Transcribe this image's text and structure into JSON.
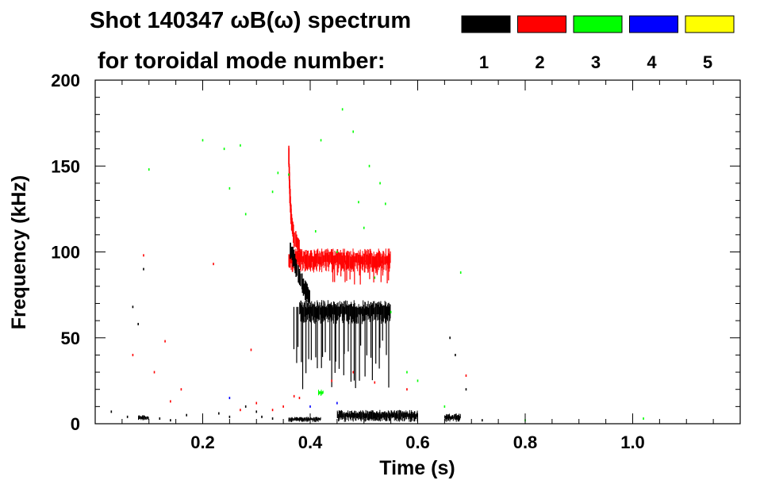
{
  "chart_data": {
    "type": "heatmap",
    "title": "Shot 140347 ωB(ω) spectrum",
    "legend_title": "for toroidal mode number:",
    "legend_placement": "top-right",
    "legend": [
      {
        "label": "1",
        "color": "#000000"
      },
      {
        "label": "2",
        "color": "#ff0000"
      },
      {
        "label": "3",
        "color": "#00ff00"
      },
      {
        "label": "4",
        "color": "#0000ff"
      },
      {
        "label": "5",
        "color": "#ffff00"
      }
    ],
    "xlabel": "Time (s)",
    "ylabel": "Frequency (kHz)",
    "xlim": [
      0.0,
      1.2
    ],
    "ylim": [
      0,
      200
    ],
    "xticks": [
      0.2,
      0.4,
      0.6,
      0.8,
      1.0
    ],
    "xtick_labels": [
      "0.2",
      "0.4",
      "0.6",
      "0.8",
      "1.0"
    ],
    "yticks": [
      0,
      50,
      100,
      150,
      200
    ],
    "ytick_labels": [
      "0",
      "50",
      "100",
      "150",
      "200"
    ],
    "grid": false,
    "features": [
      {
        "mode": "2",
        "color": "#ff0000",
        "kind": "band",
        "t_start": 0.36,
        "t_end": 0.55,
        "f_low": 88,
        "f_high": 102
      },
      {
        "mode": "2",
        "color": "#ff0000",
        "kind": "chirp",
        "points": [
          [
            0.36,
            160
          ],
          [
            0.362,
            135
          ],
          [
            0.365,
            118
          ],
          [
            0.37,
            108
          ],
          [
            0.38,
            103
          ]
        ]
      },
      {
        "mode": "2",
        "color": "#ff0000",
        "kind": "spikes",
        "t_start": 0.44,
        "t_end": 0.55,
        "f_top": 95,
        "f_bottom": 80
      },
      {
        "mode": "1",
        "color": "#000000",
        "kind": "chirp",
        "points": [
          [
            0.362,
            103
          ],
          [
            0.37,
            95
          ],
          [
            0.38,
            85
          ],
          [
            0.39,
            78
          ],
          [
            0.4,
            74
          ]
        ]
      },
      {
        "mode": "1",
        "color": "#000000",
        "kind": "band",
        "t_start": 0.38,
        "t_end": 0.55,
        "f_low": 58,
        "f_high": 72
      },
      {
        "mode": "1",
        "color": "#000000",
        "kind": "spikes",
        "t_start": 0.365,
        "t_end": 0.55,
        "f_top": 68,
        "f_bottom": 20
      },
      {
        "mode": "1",
        "color": "#000000",
        "kind": "band",
        "t_start": 0.36,
        "t_end": 0.42,
        "f_low": 1,
        "f_high": 4
      },
      {
        "mode": "1",
        "color": "#000000",
        "kind": "band",
        "t_start": 0.45,
        "t_end": 0.6,
        "f_low": 1,
        "f_high": 8
      },
      {
        "mode": "1",
        "color": "#000000",
        "kind": "band",
        "t_start": 0.65,
        "t_end": 0.68,
        "f_low": 1,
        "f_high": 6
      },
      {
        "mode": "1",
        "color": "#000000",
        "kind": "band",
        "t_start": 0.08,
        "t_end": 0.1,
        "f_low": 2,
        "f_high": 5
      },
      {
        "mode": "3",
        "color": "#00ff00",
        "kind": "band",
        "t_start": 0.415,
        "t_end": 0.425,
        "f_low": 16,
        "f_high": 20
      }
    ],
    "scatter": [
      {
        "mode": "3",
        "color": "#00ff00",
        "points": [
          [
            0.1,
            148
          ],
          [
            0.2,
            165
          ],
          [
            0.24,
            160
          ],
          [
            0.25,
            137
          ],
          [
            0.27,
            162
          ],
          [
            0.28,
            122
          ],
          [
            0.33,
            135
          ],
          [
            0.34,
            146
          ],
          [
            0.36,
            145
          ],
          [
            0.41,
            112
          ],
          [
            0.42,
            165
          ],
          [
            0.45,
            100
          ],
          [
            0.46,
            183
          ],
          [
            0.48,
            170
          ],
          [
            0.49,
            129
          ],
          [
            0.5,
            114
          ],
          [
            0.51,
            150
          ],
          [
            0.52,
            85
          ],
          [
            0.53,
            140
          ],
          [
            0.54,
            128
          ],
          [
            0.55,
            65
          ],
          [
            0.58,
            30
          ],
          [
            0.6,
            25
          ],
          [
            0.65,
            10
          ],
          [
            0.68,
            88
          ],
          [
            0.8,
            2
          ],
          [
            1.02,
            3
          ]
        ]
      },
      {
        "mode": "2",
        "color": "#ff0000",
        "points": [
          [
            0.07,
            40
          ],
          [
            0.09,
            98
          ],
          [
            0.11,
            30
          ],
          [
            0.13,
            48
          ],
          [
            0.14,
            13
          ],
          [
            0.16,
            20
          ],
          [
            0.22,
            93
          ],
          [
            0.27,
            8
          ],
          [
            0.29,
            43
          ],
          [
            0.3,
            12
          ],
          [
            0.33,
            8
          ],
          [
            0.35,
            10
          ],
          [
            0.37,
            16
          ],
          [
            0.38,
            15
          ],
          [
            0.44,
            25
          ],
          [
            0.48,
            30
          ],
          [
            0.52,
            24
          ],
          [
            0.58,
            20
          ],
          [
            0.69,
            28
          ]
        ]
      },
      {
        "mode": "4",
        "color": "#0000ff",
        "points": [
          [
            0.25,
            15
          ],
          [
            0.4,
            10
          ],
          [
            0.45,
            12
          ]
        ]
      },
      {
        "mode": "1",
        "color": "#000000",
        "points": [
          [
            0.03,
            7
          ],
          [
            0.06,
            4
          ],
          [
            0.07,
            68
          ],
          [
            0.08,
            58
          ],
          [
            0.09,
            90
          ],
          [
            0.12,
            3
          ],
          [
            0.14,
            2
          ],
          [
            0.17,
            5
          ],
          [
            0.23,
            6
          ],
          [
            0.25,
            4
          ],
          [
            0.28,
            10
          ],
          [
            0.3,
            7
          ],
          [
            0.31,
            4
          ],
          [
            0.33,
            3
          ],
          [
            0.66,
            50
          ],
          [
            0.67,
            40
          ],
          [
            0.69,
            20
          ],
          [
            0.72,
            2
          ]
        ]
      }
    ]
  }
}
